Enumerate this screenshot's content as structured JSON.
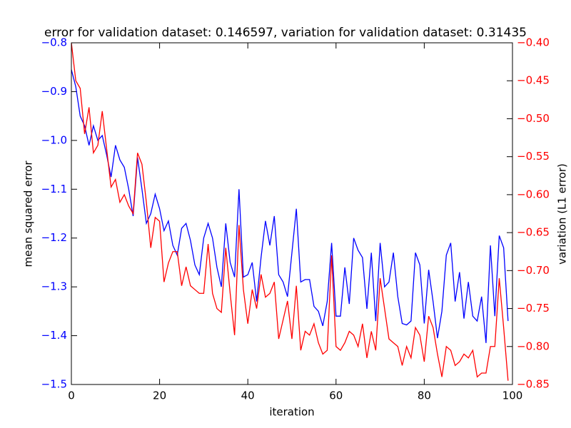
{
  "chart_data": {
    "type": "line",
    "title": "error for validation dataset: 0.146597, variation for validation dataset: 0.31435",
    "xlabel": "iteration",
    "ylabel": "mean squared error",
    "y2label": "variation (L1 error)",
    "x": [
      0,
      1,
      2,
      3,
      4,
      5,
      6,
      7,
      8,
      9,
      10,
      11,
      12,
      13,
      14,
      15,
      16,
      17,
      18,
      19,
      20,
      21,
      22,
      23,
      24,
      25,
      26,
      27,
      28,
      29,
      30,
      31,
      32,
      33,
      34,
      35,
      36,
      37,
      38,
      39,
      40,
      41,
      42,
      43,
      44,
      45,
      46,
      47,
      48,
      49,
      50,
      51,
      52,
      53,
      54,
      55,
      56,
      57,
      58,
      59,
      60,
      61,
      62,
      63,
      64,
      65,
      66,
      67,
      68,
      69,
      70,
      71,
      72,
      73,
      74,
      75,
      76,
      77,
      78,
      79,
      80,
      81,
      82,
      83,
      84,
      85,
      86,
      87,
      88,
      89,
      90,
      91,
      92,
      93,
      94,
      95,
      96,
      97,
      98,
      99
    ],
    "series": [
      {
        "name": "mean squared error",
        "color": "#0000ff",
        "axis": "y",
        "values": [
          -0.855,
          -0.89,
          -0.95,
          -0.97,
          -1.01,
          -0.97,
          -1.0,
          -0.99,
          -1.03,
          -1.075,
          -1.01,
          -1.04,
          -1.055,
          -1.1,
          -1.155,
          -1.035,
          -1.1,
          -1.17,
          -1.15,
          -1.11,
          -1.14,
          -1.185,
          -1.165,
          -1.215,
          -1.235,
          -1.18,
          -1.17,
          -1.205,
          -1.255,
          -1.275,
          -1.2,
          -1.17,
          -1.2,
          -1.26,
          -1.3,
          -1.17,
          -1.25,
          -1.28,
          -1.1,
          -1.28,
          -1.275,
          -1.25,
          -1.33,
          -1.24,
          -1.165,
          -1.215,
          -1.155,
          -1.275,
          -1.29,
          -1.32,
          -1.23,
          -1.14,
          -1.29,
          -1.285,
          -1.285,
          -1.34,
          -1.35,
          -1.38,
          -1.33,
          -1.21,
          -1.36,
          -1.36,
          -1.26,
          -1.335,
          -1.2,
          -1.225,
          -1.24,
          -1.345,
          -1.23,
          -1.37,
          -1.21,
          -1.3,
          -1.29,
          -1.23,
          -1.32,
          -1.375,
          -1.378,
          -1.37,
          -1.23,
          -1.255,
          -1.375,
          -1.265,
          -1.33,
          -1.405,
          -1.35,
          -1.235,
          -1.21,
          -1.33,
          -1.27,
          -1.365,
          -1.29,
          -1.36,
          -1.37,
          -1.32,
          -1.415,
          -1.215,
          -1.36,
          -1.195,
          -1.22,
          -1.37
        ]
      },
      {
        "name": "variation (L1 error)",
        "color": "#ff0000",
        "axis": "y2",
        "values": [
          -0.4,
          -0.45,
          -0.46,
          -0.52,
          -0.485,
          -0.545,
          -0.535,
          -0.49,
          -0.54,
          -0.59,
          -0.58,
          -0.61,
          -0.6,
          -0.615,
          -0.625,
          -0.545,
          -0.56,
          -0.61,
          -0.67,
          -0.63,
          -0.635,
          -0.715,
          -0.69,
          -0.675,
          -0.675,
          -0.72,
          -0.695,
          -0.72,
          -0.725,
          -0.73,
          -0.73,
          -0.665,
          -0.73,
          -0.75,
          -0.755,
          -0.67,
          -0.73,
          -0.785,
          -0.64,
          -0.725,
          -0.77,
          -0.725,
          -0.75,
          -0.705,
          -0.735,
          -0.73,
          -0.715,
          -0.79,
          -0.765,
          -0.74,
          -0.79,
          -0.72,
          -0.805,
          -0.78,
          -0.785,
          -0.77,
          -0.795,
          -0.81,
          -0.805,
          -0.68,
          -0.8,
          -0.805,
          -0.795,
          -0.78,
          -0.785,
          -0.8,
          -0.77,
          -0.815,
          -0.78,
          -0.805,
          -0.71,
          -0.75,
          -0.79,
          -0.795,
          -0.8,
          -0.825,
          -0.8,
          -0.815,
          -0.775,
          -0.785,
          -0.82,
          -0.76,
          -0.775,
          -0.81,
          -0.84,
          -0.8,
          -0.805,
          -0.825,
          -0.82,
          -0.81,
          -0.815,
          -0.805,
          -0.84,
          -0.835,
          -0.835,
          -0.8,
          -0.8,
          -0.71,
          -0.775,
          -0.845
        ]
      }
    ],
    "xlim": [
      0,
      100
    ],
    "xticks": [
      0,
      20,
      40,
      60,
      80,
      100
    ],
    "ylim": [
      -1.5,
      -0.8
    ],
    "yticks": [
      {
        "value": -1.5,
        "label": "−1.5"
      },
      {
        "value": -1.4,
        "label": "−1.4"
      },
      {
        "value": -1.3,
        "label": "−1.3"
      },
      {
        "value": -1.2,
        "label": "−1.2"
      },
      {
        "value": -1.1,
        "label": "−1.1"
      },
      {
        "value": -1.0,
        "label": "−1.0"
      },
      {
        "value": -0.9,
        "label": "−0.9"
      },
      {
        "value": -0.8,
        "label": "−0.8"
      }
    ],
    "y2lim": [
      -0.85,
      -0.4
    ],
    "y2ticks": [
      {
        "value": -0.85,
        "label": "−0.85"
      },
      {
        "value": -0.8,
        "label": "−0.80"
      },
      {
        "value": -0.75,
        "label": "−0.75"
      },
      {
        "value": -0.7,
        "label": "−0.70"
      },
      {
        "value": -0.65,
        "label": "−0.65"
      },
      {
        "value": -0.6,
        "label": "−0.60"
      },
      {
        "value": -0.55,
        "label": "−0.55"
      },
      {
        "value": -0.5,
        "label": "−0.50"
      },
      {
        "value": -0.45,
        "label": "−0.45"
      },
      {
        "value": -0.4,
        "label": "−0.40"
      }
    ],
    "grid": false
  }
}
